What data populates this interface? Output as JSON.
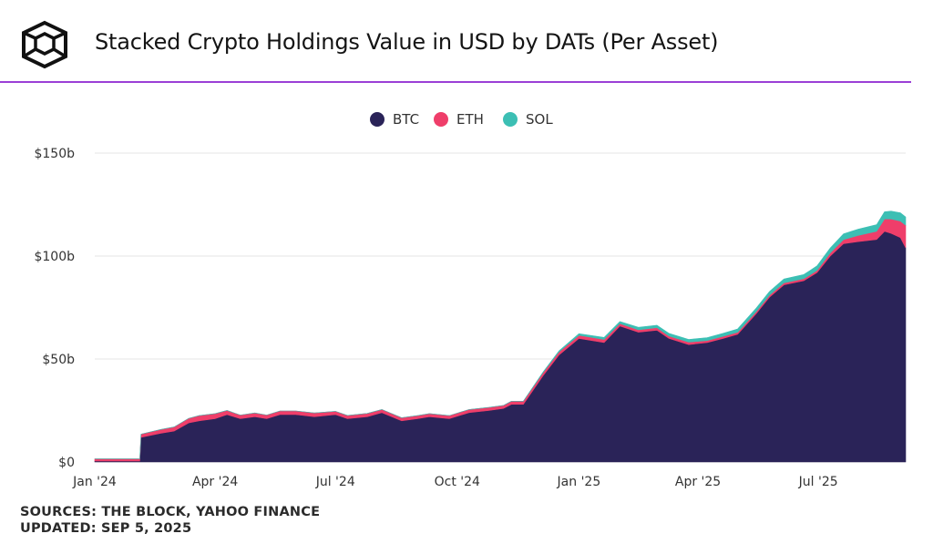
{
  "header": {
    "title": "Stacked Crypto Holdings Value in USD by DATs (Per Asset)"
  },
  "colors": {
    "accent": "#9b3fd6",
    "BTC": "#2a2358",
    "ETH": "#ef3e6a",
    "SOL": "#3cbfb4",
    "grid": "#e6e6e6",
    "text": "#333333"
  },
  "footer": {
    "sources": "SOURCES: THE BLOCK, YAHOO FINANCE",
    "updated": "UPDATED: SEP 5, 2025"
  },
  "chart_data": {
    "type": "area",
    "stacked": true,
    "legend_position": "top-center",
    "grid": true,
    "x_tick_labels": [
      {
        "date": "2024-01-01",
        "label": "Jan '24"
      },
      {
        "date": "2024-04-01",
        "label": "Apr '24"
      },
      {
        "date": "2024-07-01",
        "label": "Jul '24"
      },
      {
        "date": "2024-10-01",
        "label": "Oct '24"
      },
      {
        "date": "2025-01-01",
        "label": "Jan '25"
      },
      {
        "date": "2025-04-01",
        "label": "Apr '25"
      },
      {
        "date": "2025-07-01",
        "label": "Jul '25"
      }
    ],
    "xlim": [
      "2024-01-01",
      "2025-09-05"
    ],
    "ylim": [
      0,
      150
    ],
    "y_ticks": [
      {
        "value": 0,
        "label": "$0"
      },
      {
        "value": 50,
        "label": "$50b"
      },
      {
        "value": 100,
        "label": "$100b"
      },
      {
        "value": 150,
        "label": "$150b"
      }
    ],
    "x": [
      "2024-01-01",
      "2024-02-04",
      "2024-02-05",
      "2024-02-20",
      "2024-03-01",
      "2024-03-12",
      "2024-03-20",
      "2024-04-01",
      "2024-04-10",
      "2024-04-20",
      "2024-05-01",
      "2024-05-10",
      "2024-05-20",
      "2024-06-01",
      "2024-06-15",
      "2024-07-01",
      "2024-07-10",
      "2024-07-25",
      "2024-08-05",
      "2024-08-20",
      "2024-09-01",
      "2024-09-10",
      "2024-09-25",
      "2024-10-10",
      "2024-10-25",
      "2024-11-05",
      "2024-11-11",
      "2024-11-20",
      "2024-12-05",
      "2024-12-17",
      "2025-01-01",
      "2025-01-20",
      "2025-02-01",
      "2025-02-15",
      "2025-03-01",
      "2025-03-10",
      "2025-03-25",
      "2025-04-08",
      "2025-04-20",
      "2025-05-01",
      "2025-05-15",
      "2025-05-25",
      "2025-06-05",
      "2025-06-20",
      "2025-06-30",
      "2025-07-10",
      "2025-07-20",
      "2025-07-31",
      "2025-08-14",
      "2025-08-20",
      "2025-08-25",
      "2025-09-01",
      "2025-09-05"
    ],
    "series": [
      {
        "name": "BTC",
        "values": [
          0.5,
          0.5,
          12,
          14,
          15,
          19,
          20,
          21,
          23,
          21,
          22,
          21,
          23,
          23,
          22,
          23,
          21,
          22,
          24,
          20,
          21,
          22,
          21,
          24,
          25,
          26,
          28,
          28,
          42,
          52,
          60,
          58,
          66,
          63,
          64,
          60,
          57,
          58,
          60,
          62,
          72,
          80,
          86,
          88,
          92,
          100,
          106,
          107,
          108,
          112,
          111,
          109,
          104
        ]
      },
      {
        "name": "ETH",
        "values": [
          1,
          1,
          1.5,
          1.8,
          2,
          2.2,
          2.5,
          2.5,
          2,
          1.8,
          1.8,
          1.8,
          1.8,
          1.8,
          1.8,
          1.6,
          1.6,
          1.6,
          1.5,
          1.5,
          1.5,
          1.5,
          1.5,
          1.5,
          1.5,
          1.5,
          1.5,
          1.5,
          1.5,
          1.5,
          1.5,
          1.5,
          1.2,
          1.2,
          1.2,
          1.2,
          1.2,
          1,
          1,
          1,
          1,
          1,
          1,
          1,
          1,
          1.5,
          2,
          3,
          4,
          6,
          7,
          8,
          11
        ]
      },
      {
        "name": "SOL",
        "values": [
          0,
          0,
          0,
          0,
          0,
          0,
          0,
          0,
          0,
          0,
          0,
          0,
          0,
          0,
          0,
          0,
          0,
          0,
          0,
          0,
          0,
          0,
          0,
          0,
          0,
          0,
          0,
          0,
          0.3,
          0.5,
          0.8,
          1,
          1,
          1.2,
          1.2,
          1.3,
          1.3,
          1.4,
          1.5,
          1.6,
          1.7,
          1.8,
          1.9,
          2,
          2.2,
          2.4,
          2.8,
          3,
          3.2,
          3.5,
          3.8,
          4,
          4
        ]
      }
    ]
  }
}
